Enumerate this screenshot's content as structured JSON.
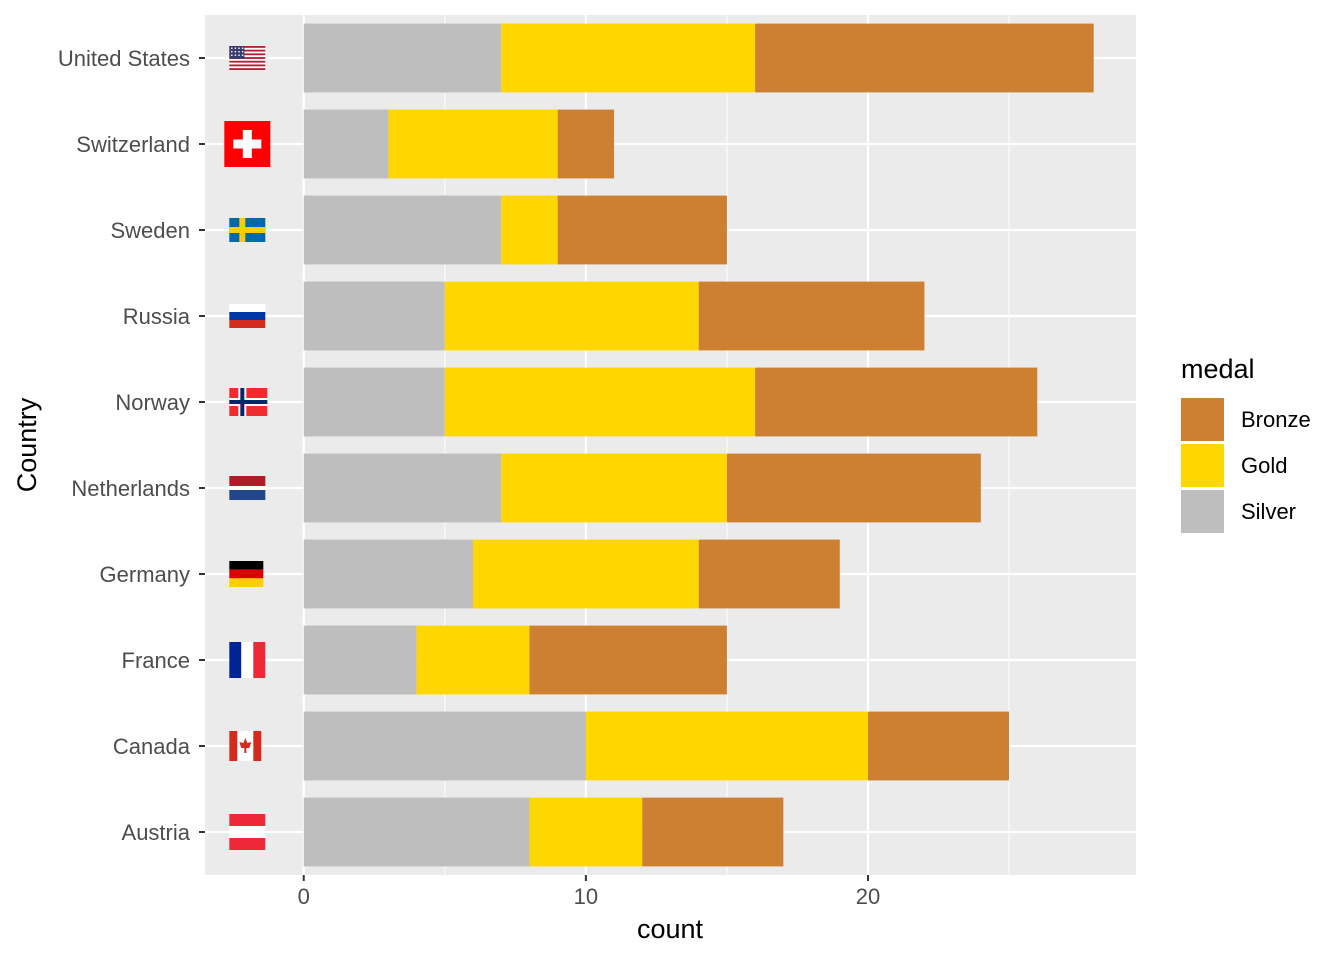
{
  "chart_data": {
    "type": "bar",
    "orientation": "horizontal",
    "stacked": true,
    "xlabel": "count",
    "ylabel": "Country",
    "xlim": [
      -3.5,
      29.5
    ],
    "xticks": [
      0,
      10,
      20
    ],
    "grid": true,
    "categories": [
      "United States",
      "Switzerland",
      "Sweden",
      "Russia",
      "Norway",
      "Netherlands",
      "Germany",
      "France",
      "Canada",
      "Austria"
    ],
    "series": [
      {
        "name": "Silver",
        "color": "#BEBEBE",
        "values": [
          7,
          3,
          7,
          5,
          5,
          7,
          6,
          4,
          10,
          8
        ]
      },
      {
        "name": "Gold",
        "color": "#FFD700",
        "values": [
          9,
          6,
          2,
          9,
          11,
          8,
          8,
          4,
          10,
          4
        ]
      },
      {
        "name": "Bronze",
        "color": "#CD7F32",
        "values": [
          12,
          2,
          6,
          8,
          10,
          9,
          5,
          7,
          5,
          5
        ]
      }
    ],
    "legend": {
      "title": "medal",
      "placement": "right",
      "entries": [
        {
          "label": "Bronze",
          "color": "#CD7F32"
        },
        {
          "label": "Gold",
          "color": "#FFD700"
        },
        {
          "label": "Silver",
          "color": "#BEBEBE"
        }
      ]
    },
    "flags": [
      {
        "country": "United States",
        "icon": "us-flag-icon"
      },
      {
        "country": "Switzerland",
        "icon": "swiss-flag-icon"
      },
      {
        "country": "Sweden",
        "icon": "sweden-flag-icon"
      },
      {
        "country": "Russia",
        "icon": "russia-flag-icon"
      },
      {
        "country": "Norway",
        "icon": "norway-flag-icon"
      },
      {
        "country": "Netherlands",
        "icon": "netherlands-flag-icon"
      },
      {
        "country": "Germany",
        "icon": "germany-flag-icon"
      },
      {
        "country": "France",
        "icon": "france-flag-icon"
      },
      {
        "country": "Canada",
        "icon": "canada-flag-icon"
      },
      {
        "country": "Austria",
        "icon": "austria-flag-icon"
      }
    ],
    "colors": {
      "panel": "#EBEBEB",
      "grid": "#FFFFFF"
    }
  }
}
